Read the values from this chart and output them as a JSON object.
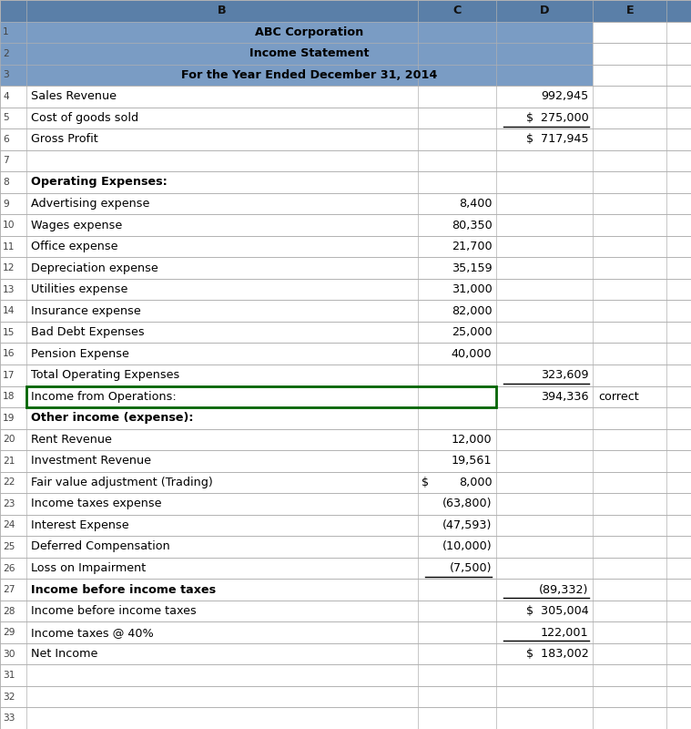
{
  "rows": [
    {
      "row": 1,
      "desc": "ABC Corporation",
      "c_val": "",
      "d_val": "",
      "e_val": "",
      "header": true,
      "bold": true
    },
    {
      "row": 2,
      "desc": "Income Statement",
      "c_val": "",
      "d_val": "",
      "e_val": "",
      "header": true,
      "bold": true
    },
    {
      "row": 3,
      "desc": "For the Year Ended December 31, 2014",
      "c_val": "",
      "d_val": "",
      "e_val": "",
      "header": true,
      "bold": true
    },
    {
      "row": 4,
      "desc": "Sales Revenue",
      "c_val": "",
      "d_val": "992,945",
      "e_val": "",
      "header": false,
      "bold": false,
      "underline_c": false,
      "underline_d": false
    },
    {
      "row": 5,
      "desc": "Cost of goods sold",
      "c_val": "",
      "d_val": "$  275,000",
      "e_val": "",
      "header": false,
      "bold": false,
      "underline_d": true
    },
    {
      "row": 6,
      "desc": "Gross Profit",
      "c_val": "",
      "d_val": "$  717,945",
      "e_val": "",
      "header": false,
      "bold": false
    },
    {
      "row": 7,
      "desc": "",
      "c_val": "",
      "d_val": "",
      "e_val": "",
      "header": false,
      "bold": false
    },
    {
      "row": 8,
      "desc": "Operating Expenses:",
      "c_val": "",
      "d_val": "",
      "e_val": "",
      "header": false,
      "bold": true
    },
    {
      "row": 9,
      "desc": "Advertising expense",
      "c_val": "8,400",
      "d_val": "",
      "e_val": "",
      "header": false,
      "bold": false
    },
    {
      "row": 10,
      "desc": "Wages expense",
      "c_val": "80,350",
      "d_val": "",
      "e_val": "",
      "header": false,
      "bold": false
    },
    {
      "row": 11,
      "desc": "Office expense",
      "c_val": "21,700",
      "d_val": "",
      "e_val": "",
      "header": false,
      "bold": false
    },
    {
      "row": 12,
      "desc": "Depreciation expense",
      "c_val": "35,159",
      "d_val": "",
      "e_val": "",
      "header": false,
      "bold": false
    },
    {
      "row": 13,
      "desc": "Utilities expense",
      "c_val": "31,000",
      "d_val": "",
      "e_val": "",
      "header": false,
      "bold": false
    },
    {
      "row": 14,
      "desc": "Insurance expense",
      "c_val": "82,000",
      "d_val": "",
      "e_val": "",
      "header": false,
      "bold": false
    },
    {
      "row": 15,
      "desc": "Bad Debt Expenses",
      "c_val": "25,000",
      "d_val": "",
      "e_val": "",
      "header": false,
      "bold": false
    },
    {
      "row": 16,
      "desc": "Pension Expense",
      "c_val": "40,000",
      "d_val": "",
      "e_val": "",
      "header": false,
      "bold": false
    },
    {
      "row": 17,
      "desc": "Total Operating Expenses",
      "c_val": "",
      "d_val": "323,609",
      "e_val": "",
      "header": false,
      "bold": false,
      "underline_d": true
    },
    {
      "row": 18,
      "desc": "Income from Operations:",
      "c_val": "",
      "d_val": "394,336",
      "e_val": "correct",
      "header": false,
      "bold": false,
      "green_border": true
    },
    {
      "row": 19,
      "desc": "Other income (expense):",
      "c_val": "",
      "d_val": "",
      "e_val": "",
      "header": false,
      "bold": true
    },
    {
      "row": 20,
      "desc": "Rent Revenue",
      "c_val": "12,000",
      "d_val": "",
      "e_val": "",
      "header": false,
      "bold": false
    },
    {
      "row": 21,
      "desc": "Investment Revenue",
      "c_val": "19,561",
      "d_val": "",
      "e_val": "",
      "header": false,
      "bold": false
    },
    {
      "row": 22,
      "desc": "Fair value adjustment (Trading)",
      "c_dollar": "$",
      "c_val": "8,000",
      "d_val": "",
      "e_val": "",
      "header": false,
      "bold": false
    },
    {
      "row": 23,
      "desc": "Income taxes expense",
      "c_val": "(63,800)",
      "d_val": "",
      "e_val": "",
      "header": false,
      "bold": false
    },
    {
      "row": 24,
      "desc": "Interest Expense",
      "c_val": "(47,593)",
      "d_val": "",
      "e_val": "",
      "header": false,
      "bold": false
    },
    {
      "row": 25,
      "desc": "Deferred Compensation",
      "c_val": "(10,000)",
      "d_val": "",
      "e_val": "",
      "header": false,
      "bold": false
    },
    {
      "row": 26,
      "desc": "Loss on Impairment",
      "c_val": "(7,500)",
      "d_val": "",
      "e_val": "",
      "header": false,
      "bold": false,
      "underline_c": true
    },
    {
      "row": 27,
      "desc": "Income before income taxes",
      "c_val": "",
      "d_val": "(89,332)",
      "e_val": "",
      "header": false,
      "bold": true,
      "underline_d": true
    },
    {
      "row": 28,
      "desc": "Income before income taxes",
      "c_val": "",
      "d_val": "$  305,004",
      "e_val": "",
      "header": false,
      "bold": false
    },
    {
      "row": 29,
      "desc": "Income taxes @ 40%",
      "c_val": "",
      "d_val": "122,001",
      "e_val": "",
      "header": false,
      "bold": false,
      "underline_d": true
    },
    {
      "row": 30,
      "desc": "Net Income",
      "c_val": "",
      "d_val": "$  183,002",
      "e_val": "",
      "header": false,
      "bold": false
    },
    {
      "row": 31,
      "desc": "",
      "c_val": "",
      "d_val": "",
      "e_val": "",
      "header": false,
      "bold": false
    },
    {
      "row": 32,
      "desc": "",
      "c_val": "",
      "d_val": "",
      "e_val": "",
      "header": false,
      "bold": false
    },
    {
      "row": 33,
      "desc": "",
      "c_val": "",
      "d_val": "",
      "e_val": "",
      "header": false,
      "bold": false
    }
  ],
  "num_data_rows": 33,
  "col_bounds": [
    0.0,
    0.038,
    0.605,
    0.718,
    0.858,
    0.965,
    1.0
  ],
  "header_color": "#7a9cc4",
  "col_header_color": "#5a7fa8",
  "grid_color": "#b0b0b0",
  "bg_color": "#ffffff",
  "font_size": 9.2,
  "green_border_color": "#006400"
}
